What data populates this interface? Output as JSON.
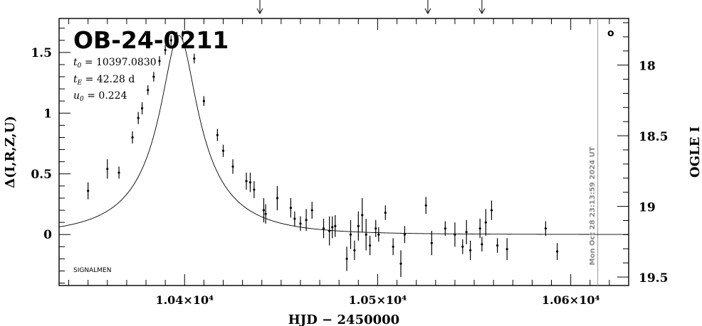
{
  "chart_data": {
    "type": "scatter",
    "title": "OB-24-0211",
    "params": {
      "t0": "10397.0830",
      "tE": "42.28 d",
      "u0": "0.224"
    },
    "xlabel": "HJD − 2450000",
    "ylabel_left": "Δ(I,R,Z,U)",
    "ylabel_right": "OGLE I",
    "corner_label": "SIGNALMEN",
    "timestamp_label": "Mon Oct 28 23:13:59 2024 UT",
    "legend_symbol": "o",
    "xlim": [
      10335,
      10630
    ],
    "ylim_left": [
      -0.42,
      1.78
    ],
    "ylim_right": [
      19.56,
      17.67
    ],
    "x_ticks": [
      {
        "value": 10400,
        "label": "1.04×10⁴"
      },
      {
        "value": 10500,
        "label": "1.05×10⁴"
      },
      {
        "value": 10600,
        "label": "1.06×10⁴"
      }
    ],
    "y_ticks_left": [
      {
        "value": 1.5,
        "label": "1.5"
      },
      {
        "value": 1.0,
        "label": "1"
      },
      {
        "value": 0.5,
        "label": "0.5"
      },
      {
        "value": 0.0,
        "label": "0"
      }
    ],
    "y_ticks_right": [
      {
        "value": 18.0,
        "label": "18"
      },
      {
        "value": 18.5,
        "label": "18.5"
      },
      {
        "value": 19.0,
        "label": "19"
      },
      {
        "value": 19.5,
        "label": "19.5"
      }
    ],
    "marker_arrows_x": [
      10439,
      10526,
      10554
    ],
    "timestamp_line_x": 10614,
    "model": {
      "t0": 10397.083,
      "tE": 42.28,
      "u0": 0.224
    },
    "points": [
      {
        "x": 10350.0,
        "y": 0.36,
        "err": 0.07
      },
      {
        "x": 10360.0,
        "y": 0.54,
        "err": 0.08
      },
      {
        "x": 10366.0,
        "y": 0.51,
        "err": 0.05
      },
      {
        "x": 10373.0,
        "y": 0.8,
        "err": 0.05
      },
      {
        "x": 10376.0,
        "y": 0.96,
        "err": 0.05
      },
      {
        "x": 10378.0,
        "y": 1.04,
        "err": 0.05
      },
      {
        "x": 10381.0,
        "y": 1.19,
        "err": 0.04
      },
      {
        "x": 10384.0,
        "y": 1.3,
        "err": 0.04
      },
      {
        "x": 10387.0,
        "y": 1.43,
        "err": 0.04
      },
      {
        "x": 10390.0,
        "y": 1.52,
        "err": 0.04
      },
      {
        "x": 10393.0,
        "y": 1.6,
        "err": 0.04
      },
      {
        "x": 10396.0,
        "y": 1.63,
        "err": 0.04
      },
      {
        "x": 10399.0,
        "y": 1.64,
        "err": 0.04
      },
      {
        "x": 10405.0,
        "y": 1.45,
        "err": 0.04
      },
      {
        "x": 10410.0,
        "y": 1.1,
        "err": 0.04
      },
      {
        "x": 10417.0,
        "y": 0.82,
        "err": 0.05
      },
      {
        "x": 10420.0,
        "y": 0.69,
        "err": 0.05
      },
      {
        "x": 10425.0,
        "y": 0.56,
        "err": 0.06
      },
      {
        "x": 10432.0,
        "y": 0.44,
        "err": 0.07
      },
      {
        "x": 10434.0,
        "y": 0.43,
        "err": 0.08
      },
      {
        "x": 10436.0,
        "y": 0.37,
        "err": 0.07
      },
      {
        "x": 10441.0,
        "y": 0.2,
        "err": 0.1
      },
      {
        "x": 10442.0,
        "y": 0.17,
        "err": 0.08
      },
      {
        "x": 10448.0,
        "y": 0.3,
        "err": 0.1
      },
      {
        "x": 10455.0,
        "y": 0.22,
        "err": 0.08
      },
      {
        "x": 10457.0,
        "y": 0.13,
        "err": 0.06
      },
      {
        "x": 10460.0,
        "y": 0.09,
        "err": 0.06
      },
      {
        "x": 10463.0,
        "y": 0.12,
        "err": 0.09
      },
      {
        "x": 10466.0,
        "y": 0.2,
        "err": 0.07
      },
      {
        "x": 10472.0,
        "y": 0.05,
        "err": 0.08
      },
      {
        "x": 10475.0,
        "y": 0.03,
        "err": 0.12
      },
      {
        "x": 10476.5,
        "y": 0.06,
        "err": 0.09
      },
      {
        "x": 10478.0,
        "y": 0.07,
        "err": 0.09
      },
      {
        "x": 10484.0,
        "y": -0.2,
        "err": 0.1
      },
      {
        "x": 10486.0,
        "y": 0.0,
        "err": 0.12
      },
      {
        "x": 10488.0,
        "y": -0.13,
        "err": 0.08
      },
      {
        "x": 10490.0,
        "y": 0.07,
        "err": 0.12
      },
      {
        "x": 10492.0,
        "y": 0.16,
        "err": 0.14
      },
      {
        "x": 10494.0,
        "y": 0.0,
        "err": 0.13
      },
      {
        "x": 10496.0,
        "y": -0.09,
        "err": 0.08
      },
      {
        "x": 10499.0,
        "y": 0.05,
        "err": 0.07
      },
      {
        "x": 10500.5,
        "y": 0.0,
        "err": 0.06
      },
      {
        "x": 10504.0,
        "y": 0.18,
        "err": 0.06
      },
      {
        "x": 10508.0,
        "y": -0.1,
        "err": 0.07
      },
      {
        "x": 10512.0,
        "y": -0.24,
        "err": 0.11
      },
      {
        "x": 10514.0,
        "y": 0.0,
        "err": 0.07
      },
      {
        "x": 10525.0,
        "y": 0.24,
        "err": 0.07
      },
      {
        "x": 10528.0,
        "y": -0.07,
        "err": 0.1
      },
      {
        "x": 10535.0,
        "y": 0.05,
        "err": 0.06
      },
      {
        "x": 10540.0,
        "y": 0.0,
        "err": 0.1
      },
      {
        "x": 10544.0,
        "y": -0.1,
        "err": 0.06
      },
      {
        "x": 10546.0,
        "y": 0.02,
        "err": 0.1
      },
      {
        "x": 10548.0,
        "y": -0.13,
        "err": 0.08
      },
      {
        "x": 10553.0,
        "y": 0.05,
        "err": 0.08
      },
      {
        "x": 10554.0,
        "y": -0.08,
        "err": 0.06
      },
      {
        "x": 10556.0,
        "y": 0.1,
        "err": 0.11
      },
      {
        "x": 10559.0,
        "y": 0.2,
        "err": 0.08
      },
      {
        "x": 10562.0,
        "y": -0.09,
        "err": 0.06
      },
      {
        "x": 10567.0,
        "y": -0.12,
        "err": 0.09
      },
      {
        "x": 10587.0,
        "y": 0.05,
        "err": 0.06
      },
      {
        "x": 10593.0,
        "y": -0.14,
        "err": 0.07
      }
    ]
  }
}
